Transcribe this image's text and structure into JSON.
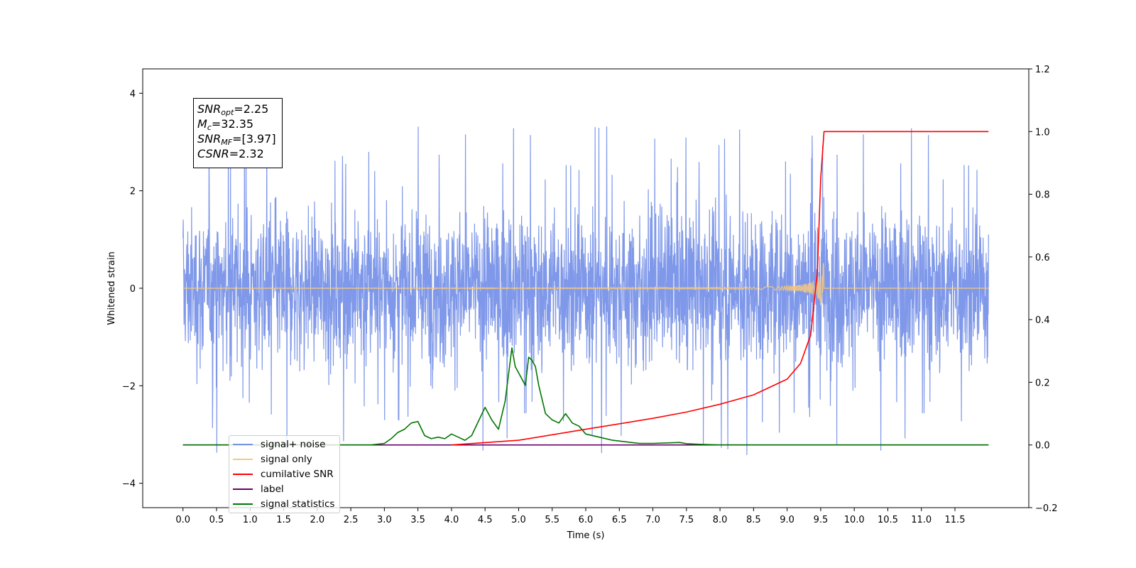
{
  "chart_data": {
    "type": "line",
    "xlabel": "Time (s)",
    "ylabel": "Whitened strain",
    "xlim": [
      -0.6,
      12.6
    ],
    "ylim": [
      -4.5,
      4.5
    ],
    "y2lim": [
      -0.2,
      1.2
    ],
    "x_ticks": [
      "0.0",
      "0.5",
      "1.0",
      "1.5",
      "2.0",
      "2.5",
      "3.0",
      "3.5",
      "4.0",
      "4.5",
      "5.0",
      "5.5",
      "6.0",
      "6.5",
      "7.0",
      "7.5",
      "8.0",
      "8.5",
      "9.0",
      "9.5",
      "10.0",
      "10.5",
      "11.0",
      "11.5"
    ],
    "y_ticks": [
      "4",
      "2",
      "0",
      "−2",
      "−4"
    ],
    "y2_ticks": [
      "1.2",
      "1.0",
      "0.8",
      "0.6",
      "0.4",
      "0.2",
      "0.0",
      "−0.2"
    ],
    "grid": false,
    "legend_position": "lower-left",
    "stats": {
      "snr_opt": "2.25",
      "mc": "32.35",
      "snr_mf": "[3.97]",
      "csnr": "2.32"
    },
    "series": [
      {
        "name": "signal+ noise",
        "color": "#7892e8",
        "axis": "left",
        "description_values": {
          "x_range": [
            0.0,
            12.0
          ],
          "typical_amplitude": 2.5,
          "max": 4.1,
          "min": -4.0
        }
      },
      {
        "name": "signal only",
        "color": "#f5c77e",
        "axis": "left",
        "chirp": {
          "peak_time": 9.5,
          "peak_amplitude": 0.6
        }
      },
      {
        "name": "cumilative SNR",
        "color": "#ff0000",
        "axis": "right",
        "x": [
          4.0,
          5.0,
          6.0,
          7.0,
          7.5,
          8.0,
          8.5,
          9.0,
          9.2,
          9.35,
          9.45,
          9.5,
          9.55,
          12.0
        ],
        "y": [
          0.0,
          0.015,
          0.05,
          0.085,
          0.105,
          0.13,
          0.16,
          0.21,
          0.26,
          0.35,
          0.55,
          0.85,
          1.0,
          1.0
        ]
      },
      {
        "name": "label",
        "color": "#6a006a",
        "axis": "right",
        "x": [
          0.0,
          12.0
        ],
        "y": [
          0.0,
          0.0
        ]
      },
      {
        "name": "signal statistics",
        "color": "#007700",
        "axis": "right",
        "x": [
          0.0,
          2.8,
          3.0,
          3.1,
          3.2,
          3.3,
          3.4,
          3.5,
          3.6,
          3.7,
          3.8,
          3.9,
          4.0,
          4.1,
          4.2,
          4.3,
          4.4,
          4.5,
          4.6,
          4.7,
          4.8,
          4.9,
          4.95,
          5.0,
          5.1,
          5.15,
          5.2,
          5.25,
          5.3,
          5.4,
          5.5,
          5.6,
          5.7,
          5.75,
          5.8,
          5.9,
          6.0,
          6.2,
          6.4,
          6.6,
          6.8,
          7.0,
          7.4,
          7.5,
          7.7,
          8.0,
          12.0
        ],
        "y": [
          0.0,
          0.0,
          0.005,
          0.02,
          0.04,
          0.05,
          0.07,
          0.075,
          0.03,
          0.02,
          0.025,
          0.02,
          0.035,
          0.025,
          0.015,
          0.03,
          0.075,
          0.12,
          0.08,
          0.05,
          0.14,
          0.31,
          0.25,
          0.23,
          0.19,
          0.28,
          0.27,
          0.25,
          0.19,
          0.1,
          0.08,
          0.07,
          0.1,
          0.085,
          0.07,
          0.06,
          0.035,
          0.025,
          0.015,
          0.01,
          0.005,
          0.005,
          0.008,
          0.004,
          0.002,
          0.0,
          0.0
        ]
      }
    ]
  },
  "legend": {
    "items": [
      {
        "label": "signal+ noise",
        "color": "#7892e8"
      },
      {
        "label": "signal only",
        "color": "#f5c77e"
      },
      {
        "label": "cumilative SNR",
        "color": "#ff0000"
      },
      {
        "label": "label",
        "color": "#6a006a"
      },
      {
        "label": "signal statistics",
        "color": "#007700"
      }
    ]
  }
}
